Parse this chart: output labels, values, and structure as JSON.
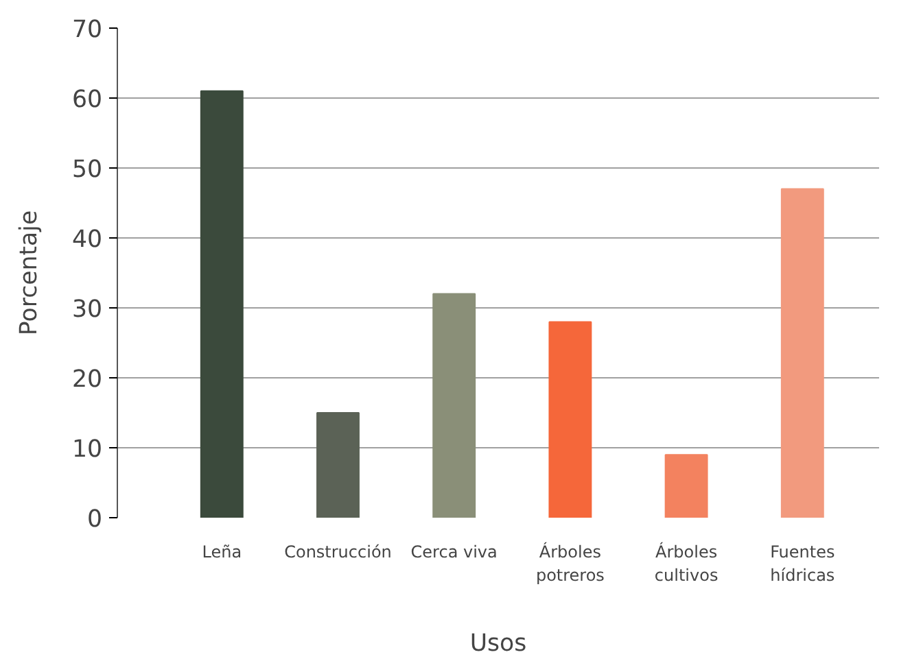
{
  "chart_data": {
    "type": "bar",
    "xlabel": "Usos",
    "ylabel": "Porcentaje",
    "categories": [
      "Leña",
      "Construcción",
      "Cerca viva",
      "Árboles potreros",
      "Árboles cultivos",
      "Fuentes hídricas"
    ],
    "values": [
      61,
      15,
      32,
      28,
      9,
      47
    ],
    "colors": [
      "#3b4a3c",
      "#5b6256",
      "#8a8f78",
      "#f5673a",
      "#f3825f",
      "#f29a7e"
    ],
    "ylim": [
      0,
      70
    ],
    "yticks": [
      0,
      10,
      20,
      30,
      40,
      50,
      60,
      70
    ],
    "grid": "y"
  }
}
